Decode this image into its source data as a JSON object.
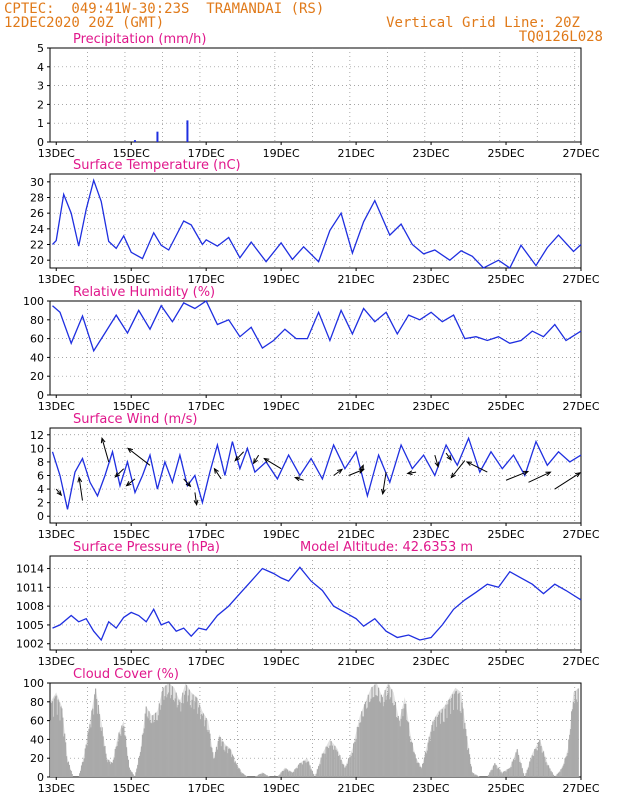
{
  "header": {
    "line1": "CPTEC:  049:41W-30:23S  TRAMANDAI (RS)",
    "line2": "12DEC2020 20Z (GMT)",
    "grid_note": "Vertical Grid Line: 20Z",
    "code": "TQ0126L028"
  },
  "colors": {
    "header": "#e07a1a",
    "title": "#e0188c",
    "line": "#1f2fe0",
    "cloud": "#aaaaaa",
    "arrow": "#000000"
  },
  "x_axis": {
    "start_day": 12,
    "start_hour": 20,
    "end_day": 27,
    "ticks": [
      "13DEC",
      "15DEC",
      "17DEC",
      "19DEC",
      "21DEC",
      "23DEC",
      "25DEC",
      "27DEC"
    ]
  },
  "chart_data": [
    {
      "id": "precip",
      "type": "bar",
      "title": "Precipitation (mm/h)",
      "ylim": [
        0,
        5
      ],
      "yticks": [
        "0",
        "1",
        "2",
        "3",
        "4",
        "5"
      ],
      "x": [
        15.1,
        15.7,
        16.5
      ],
      "values": [
        0.1,
        0.55,
        1.15
      ]
    },
    {
      "id": "temp",
      "type": "line",
      "title": "Surface Temperature (nC)",
      "ylim": [
        19,
        31
      ],
      "yticks": [
        "20",
        "22",
        "24",
        "26",
        "28",
        "30"
      ],
      "x": [
        12.9,
        13.0,
        13.2,
        13.4,
        13.6,
        13.8,
        14.0,
        14.2,
        14.4,
        14.6,
        14.8,
        15.0,
        15.3,
        15.6,
        15.8,
        16.0,
        16.4,
        16.6,
        16.9,
        17.0,
        17.3,
        17.6,
        17.9,
        18.2,
        18.6,
        19.0,
        19.3,
        19.6,
        20.0,
        20.3,
        20.6,
        20.9,
        21.2,
        21.5,
        21.9,
        22.2,
        22.5,
        22.8,
        23.1,
        23.5,
        23.8,
        24.1,
        24.4,
        24.8,
        25.1,
        25.4,
        25.8,
        26.1,
        26.4,
        26.8,
        27.0
      ],
      "values": [
        22.0,
        22.5,
        28.4,
        26.0,
        21.8,
        26.5,
        30.2,
        27.5,
        22.4,
        21.5,
        23.1,
        21.0,
        20.2,
        23.5,
        21.9,
        21.3,
        25.0,
        24.5,
        22.0,
        22.6,
        21.8,
        22.9,
        20.3,
        22.3,
        19.8,
        22.2,
        20.1,
        21.7,
        19.8,
        23.8,
        26.0,
        20.9,
        24.9,
        27.6,
        23.2,
        24.6,
        22.0,
        20.8,
        21.3,
        20.0,
        21.2,
        20.5,
        18.8,
        20.0,
        18.6,
        21.9,
        19.3,
        21.6,
        23.2,
        21.1,
        22.0
      ]
    },
    {
      "id": "rh",
      "type": "line",
      "title": "Relative Humidity (%)",
      "ylim": [
        0,
        100
      ],
      "yticks": [
        "0",
        "20",
        "40",
        "60",
        "80",
        "100"
      ],
      "x": [
        12.9,
        13.1,
        13.4,
        13.7,
        14.0,
        14.3,
        14.6,
        14.9,
        15.2,
        15.5,
        15.8,
        16.1,
        16.4,
        16.7,
        17.0,
        17.3,
        17.6,
        17.9,
        18.2,
        18.5,
        18.8,
        19.1,
        19.4,
        19.7,
        20.0,
        20.3,
        20.6,
        20.9,
        21.2,
        21.5,
        21.8,
        22.1,
        22.4,
        22.7,
        23.0,
        23.3,
        23.6,
        23.9,
        24.2,
        24.5,
        24.8,
        25.1,
        25.4,
        25.7,
        26.0,
        26.3,
        26.6,
        27.0
      ],
      "values": [
        95,
        88,
        55,
        84,
        47,
        66,
        85,
        66,
        90,
        70,
        95,
        78,
        98,
        92,
        100,
        75,
        80,
        62,
        72,
        50,
        58,
        70,
        60,
        60,
        88,
        58,
        90,
        65,
        92,
        78,
        88,
        65,
        85,
        80,
        88,
        78,
        85,
        60,
        62,
        58,
        62,
        55,
        58,
        68,
        62,
        75,
        58,
        68
      ]
    },
    {
      "id": "wind",
      "type": "line",
      "title": "Surface Wind (m/s)",
      "ylim": [
        -1,
        13
      ],
      "yticks": [
        "0",
        "2",
        "4",
        "6",
        "8",
        "10",
        "12"
      ],
      "x": [
        12.9,
        13.1,
        13.3,
        13.5,
        13.7,
        13.9,
        14.1,
        14.3,
        14.5,
        14.7,
        14.9,
        15.1,
        15.3,
        15.5,
        15.7,
        15.9,
        16.1,
        16.3,
        16.5,
        16.7,
        16.9,
        17.1,
        17.3,
        17.5,
        17.7,
        17.9,
        18.1,
        18.3,
        18.6,
        18.9,
        19.2,
        19.5,
        19.8,
        20.1,
        20.4,
        20.7,
        21.0,
        21.3,
        21.6,
        21.9,
        22.2,
        22.5,
        22.8,
        23.1,
        23.4,
        23.7,
        24.0,
        24.3,
        24.6,
        24.9,
        25.2,
        25.5,
        25.8,
        26.1,
        26.4,
        26.7,
        27.0
      ],
      "values": [
        9.5,
        6.0,
        1.0,
        6.5,
        8.5,
        5.0,
        3.0,
        6.0,
        9.5,
        4.5,
        8.0,
        3.5,
        6.0,
        9.0,
        4.0,
        8.0,
        5.0,
        9.0,
        4.5,
        6.0,
        2.0,
        6.5,
        10.5,
        6.0,
        11.0,
        7.0,
        10.0,
        6.5,
        8.0,
        5.5,
        9.0,
        6.0,
        8.5,
        5.5,
        10.5,
        7.0,
        9.5,
        3.0,
        9.0,
        5.0,
        10.5,
        7.0,
        9.0,
        6.0,
        10.5,
        7.5,
        11.5,
        6.5,
        9.5,
        7.0,
        9.0,
        6.0,
        11.0,
        7.5,
        9.5,
        8.0,
        9.0
      ],
      "arrows": [
        {
          "x": 13.0,
          "v": 4.0,
          "dx": 0.3,
          "dv": -0.9
        },
        {
          "x": 13.7,
          "v": 2.3,
          "dx": -0.2,
          "dv": 3.4
        },
        {
          "x": 14.4,
          "v": 8.0,
          "dx": -0.4,
          "dv": 3.5
        },
        {
          "x": 14.8,
          "v": 7.0,
          "dx": -0.5,
          "dv": -1.2
        },
        {
          "x": 15.1,
          "v": 5.5,
          "dx": -0.5,
          "dv": -1.0
        },
        {
          "x": 15.5,
          "v": 7.5,
          "dx": -1.3,
          "dv": 2.5
        },
        {
          "x": 16.4,
          "v": 5.5,
          "dx": 0.4,
          "dv": -1.1
        },
        {
          "x": 16.7,
          "v": 3.5,
          "dx": 0.1,
          "dv": -1.8
        },
        {
          "x": 17.4,
          "v": 5.5,
          "dx": -0.4,
          "dv": 1.5
        },
        {
          "x": 18.0,
          "v": 9.5,
          "dx": -0.5,
          "dv": -1.3
        },
        {
          "x": 18.4,
          "v": 9.0,
          "dx": -0.3,
          "dv": -1.2
        },
        {
          "x": 19.0,
          "v": 7.0,
          "dx": -1.0,
          "dv": 1.5
        },
        {
          "x": 19.6,
          "v": 5.3,
          "dx": -0.5,
          "dv": 0.4
        },
        {
          "x": 20.4,
          "v": 6.0,
          "dx": 0.5,
          "dv": 0.9
        },
        {
          "x": 20.8,
          "v": 6.0,
          "dx": 0.9,
          "dv": 0.9
        },
        {
          "x": 21.1,
          "v": 6.3,
          "dx": 0.2,
          "dv": 1.2
        },
        {
          "x": 21.8,
          "v": 6.5,
          "dx": -0.2,
          "dv": -3.2
        },
        {
          "x": 22.6,
          "v": 6.5,
          "dx": -0.5,
          "dv": -0.2
        },
        {
          "x": 23.1,
          "v": 9.0,
          "dx": 0.2,
          "dv": -1.7
        },
        {
          "x": 23.4,
          "v": 9.3,
          "dx": 0.3,
          "dv": -1.0
        },
        {
          "x": 23.9,
          "v": 8.2,
          "dx": -0.8,
          "dv": -2.5
        },
        {
          "x": 24.5,
          "v": 6.5,
          "dx": -1.2,
          "dv": 1.5
        },
        {
          "x": 25.0,
          "v": 5.3,
          "dx": 1.3,
          "dv": 1.3
        },
        {
          "x": 25.6,
          "v": 5.0,
          "dx": 1.3,
          "dv": 1.5
        },
        {
          "x": 26.3,
          "v": 4.0,
          "dx": 1.5,
          "dv": 2.4
        }
      ]
    },
    {
      "id": "pres",
      "type": "line",
      "title": "Surface Pressure (hPa)",
      "subtitle": "Model Altitude: 42.6353 m",
      "ylim": [
        1001,
        1016
      ],
      "yticks": [
        "1002",
        "1005",
        "1008",
        "1011",
        "1014"
      ],
      "x": [
        12.9,
        13.1,
        13.4,
        13.6,
        13.8,
        14.0,
        14.2,
        14.4,
        14.6,
        14.8,
        15.0,
        15.2,
        15.4,
        15.6,
        15.8,
        16.0,
        16.2,
        16.4,
        16.6,
        16.8,
        17.0,
        17.3,
        17.6,
        17.9,
        18.2,
        18.5,
        18.8,
        19.0,
        19.2,
        19.5,
        19.8,
        20.1,
        20.4,
        20.7,
        21.0,
        21.2,
        21.5,
        21.8,
        22.1,
        22.4,
        22.7,
        23.0,
        23.3,
        23.6,
        23.9,
        24.2,
        24.5,
        24.8,
        25.1,
        25.4,
        25.7,
        26.0,
        26.3,
        26.6,
        27.0
      ],
      "values": [
        1004.5,
        1005.0,
        1006.5,
        1005.5,
        1006.0,
        1004.0,
        1002.6,
        1005.5,
        1004.5,
        1006.2,
        1007.0,
        1006.5,
        1005.5,
        1007.5,
        1005.0,
        1005.5,
        1004.0,
        1004.5,
        1003.2,
        1004.5,
        1004.2,
        1006.5,
        1008.0,
        1010.0,
        1012.0,
        1014.0,
        1013.2,
        1012.5,
        1012.0,
        1014.2,
        1012.0,
        1010.5,
        1008.0,
        1007.0,
        1006.0,
        1004.8,
        1006.0,
        1004.0,
        1003.0,
        1003.4,
        1002.6,
        1003.0,
        1005.0,
        1007.5,
        1009.0,
        1010.2,
        1011.5,
        1011.0,
        1013.5,
        1012.5,
        1011.5,
        1010.0,
        1011.5,
        1010.5,
        1009.0
      ]
    },
    {
      "id": "cloud",
      "type": "area",
      "title": "Cloud Cover (%)",
      "ylim": [
        0,
        100
      ],
      "yticks": [
        "0",
        "20",
        "40",
        "60",
        "80",
        "100"
      ],
      "x": [
        12.85,
        13.0,
        13.15,
        13.3,
        13.45,
        13.6,
        13.75,
        13.9,
        14.05,
        14.2,
        14.35,
        14.5,
        14.65,
        14.8,
        14.95,
        15.1,
        15.25,
        15.4,
        15.55,
        15.7,
        15.85,
        16.0,
        16.15,
        16.3,
        16.45,
        16.6,
        16.75,
        16.9,
        17.05,
        17.2,
        17.35,
        17.5,
        17.65,
        17.8,
        17.95,
        18.1,
        18.3,
        18.5,
        18.7,
        18.9,
        19.1,
        19.3,
        19.5,
        19.7,
        19.9,
        20.1,
        20.3,
        20.5,
        20.7,
        20.9,
        21.1,
        21.25,
        21.4,
        21.55,
        21.7,
        21.85,
        22.0,
        22.15,
        22.3,
        22.45,
        22.6,
        22.75,
        22.9,
        23.05,
        23.2,
        23.35,
        23.5,
        23.65,
        23.8,
        23.95,
        24.1,
        24.3,
        24.5,
        24.7,
        24.9,
        25.1,
        25.3,
        25.5,
        25.7,
        25.9,
        26.1,
        26.3,
        26.5,
        26.65,
        26.8,
        26.95
      ],
      "values": [
        80,
        90,
        75,
        20,
        0,
        0,
        25,
        60,
        95,
        60,
        20,
        15,
        45,
        60,
        10,
        0,
        30,
        75,
        65,
        70,
        95,
        100,
        95,
        80,
        100,
        90,
        85,
        70,
        60,
        20,
        45,
        35,
        30,
        15,
        5,
        0,
        0,
        5,
        0,
        0,
        10,
        5,
        15,
        20,
        0,
        25,
        40,
        30,
        10,
        30,
        65,
        80,
        95,
        100,
        85,
        100,
        90,
        60,
        85,
        45,
        20,
        10,
        35,
        60,
        70,
        75,
        85,
        95,
        90,
        45,
        5,
        0,
        0,
        15,
        5,
        10,
        30,
        0,
        25,
        40,
        15,
        0,
        10,
        30,
        90,
        95
      ]
    }
  ]
}
